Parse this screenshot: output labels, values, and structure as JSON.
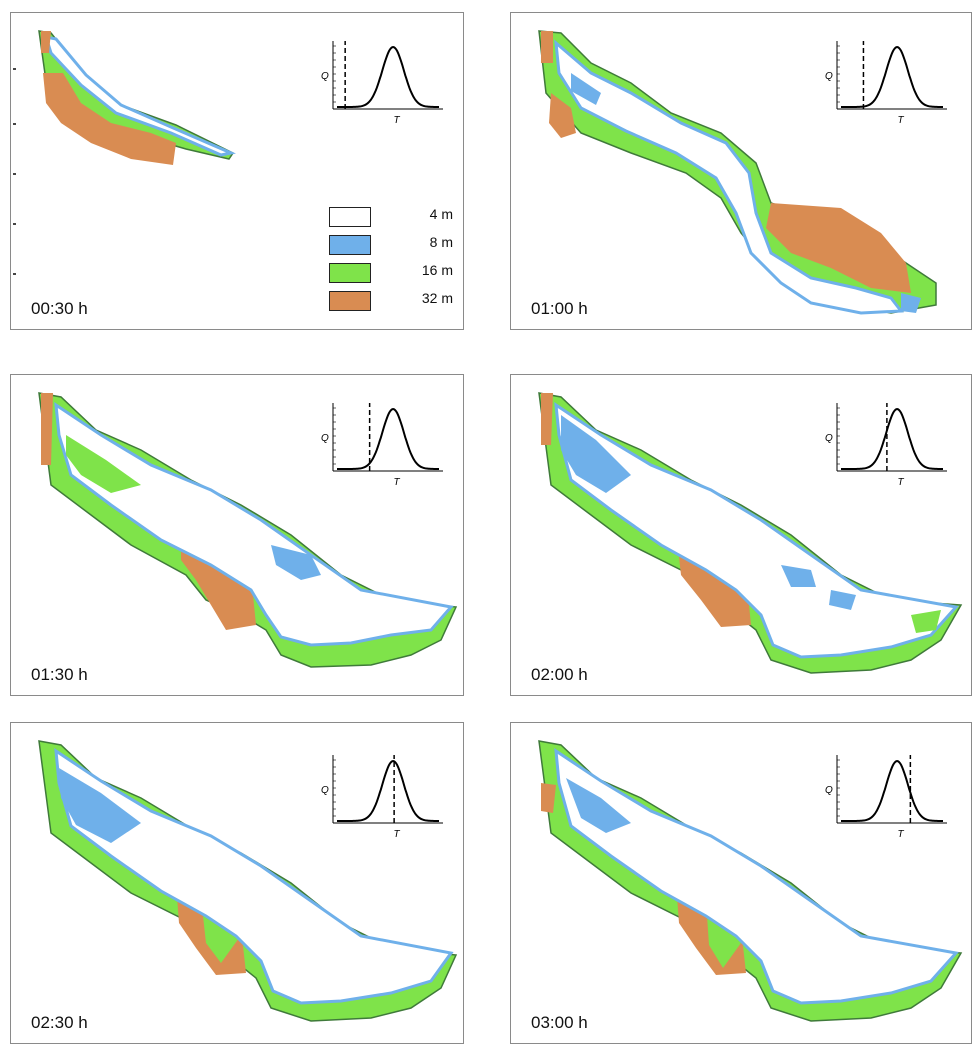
{
  "legend": {
    "items": [
      {
        "label": "4 m",
        "color": "#ffffff"
      },
      {
        "label": "8 m",
        "color": "#6fb0ea"
      },
      {
        "label": "16 m",
        "color": "#7fe34a"
      },
      {
        "label": "32 m",
        "color": "#d98c52"
      }
    ]
  },
  "inset": {
    "ylabel": "Q",
    "xlabel": "T"
  },
  "panels": [
    {
      "time": "00:30 h",
      "marker": 0.08
    },
    {
      "time": "01:00 h",
      "marker": 0.22
    },
    {
      "time": "01:30 h",
      "marker": 0.32
    },
    {
      "time": "02:00 h",
      "marker": 0.45
    },
    {
      "time": "02:30 h",
      "marker": 0.56
    },
    {
      "time": "03:00 h",
      "marker": 0.68
    }
  ],
  "colors": {
    "c4": "#ffffff",
    "c8": "#6fb0ea",
    "c16": "#7fe34a",
    "c32": "#d98c52",
    "edge": "#3f7a3a"
  }
}
